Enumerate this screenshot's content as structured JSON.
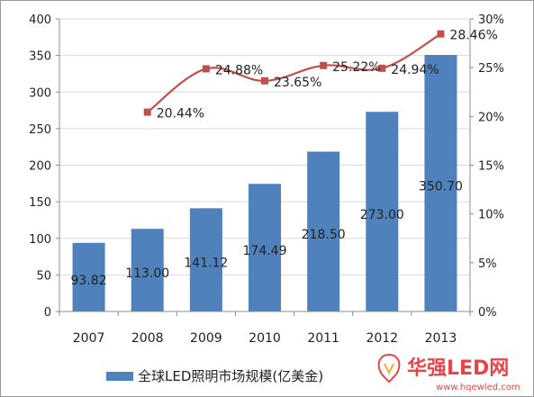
{
  "chart_data": {
    "type": "bar",
    "categories": [
      "2007",
      "2008",
      "2009",
      "2010",
      "2011",
      "2012",
      "2013"
    ],
    "series": [
      {
        "name": "全球LED照明市场规模(亿美金)",
        "type": "bar",
        "axis": "left",
        "values": [
          93.82,
          113.0,
          141.12,
          174.49,
          218.5,
          273.0,
          350.7
        ],
        "labels": [
          "93.82",
          "113.00",
          "141.12",
          "174.49",
          "218.50",
          "273.00",
          "350.70"
        ],
        "color": "#4f81bd"
      },
      {
        "type": "line",
        "axis": "right",
        "values": [
          null,
          20.44,
          24.88,
          23.65,
          25.22,
          24.94,
          28.46
        ],
        "labels": [
          "",
          "20.44%",
          "24.88%",
          "23.65%",
          "25.22%",
          "24.94%",
          "28.46%"
        ],
        "color": "#c0504d"
      }
    ],
    "ylim_left": [
      0,
      400
    ],
    "yticks_left": [
      "0",
      "50",
      "100",
      "150",
      "200",
      "250",
      "300",
      "350",
      "400"
    ],
    "ylim_right": [
      0,
      30
    ],
    "yticks_right": [
      "0%",
      "5%",
      "10%",
      "15%",
      "20%",
      "25%",
      "30%"
    ],
    "grid": true,
    "legend_position": "bottom-left"
  },
  "watermark": {
    "brand_text": "华强LED网",
    "url_text": "www.hqewled.com",
    "color": "#e0252c"
  }
}
